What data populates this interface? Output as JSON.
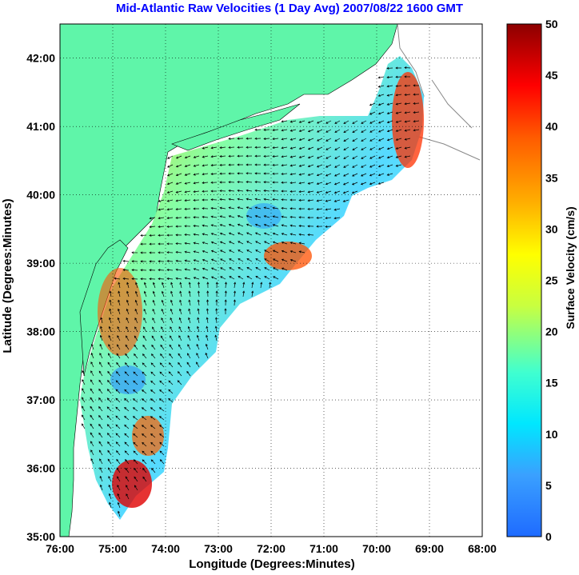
{
  "title": "Mid-Atlantic Raw Velocities (1 Day Avg) 2007/08/22 1600 GMT",
  "xlabel": "Longitude (Degrees:Minutes)",
  "ylabel": "Latitude (Degrees:Minutes)",
  "colorbar_label": "Surface Velocity (cm/s)",
  "x_ticks": [
    "76:00",
    "75:00",
    "74:00",
    "73:00",
    "72:00",
    "71:00",
    "70:00",
    "69:00",
    "68:00"
  ],
  "y_ticks": [
    "42:00",
    "41:00",
    "40:00",
    "39:00",
    "38:00",
    "37:00",
    "36:00",
    "35:00"
  ],
  "colorbar_ticks": [
    "50",
    "45",
    "40",
    "35",
    "30",
    "25",
    "20",
    "15",
    "10",
    "5",
    "0"
  ],
  "colors": {
    "title": "#0000ff",
    "land": "#5ff5a9",
    "ocean": "#ffffff",
    "grid": "#000000",
    "arrows": "#000000"
  },
  "map": {
    "lon_range": [
      -76,
      -68
    ],
    "lat_range": [
      35,
      42.5
    ],
    "colormap": "jet",
    "color_range": [
      0,
      50
    ],
    "grid": "dotted"
  }
}
